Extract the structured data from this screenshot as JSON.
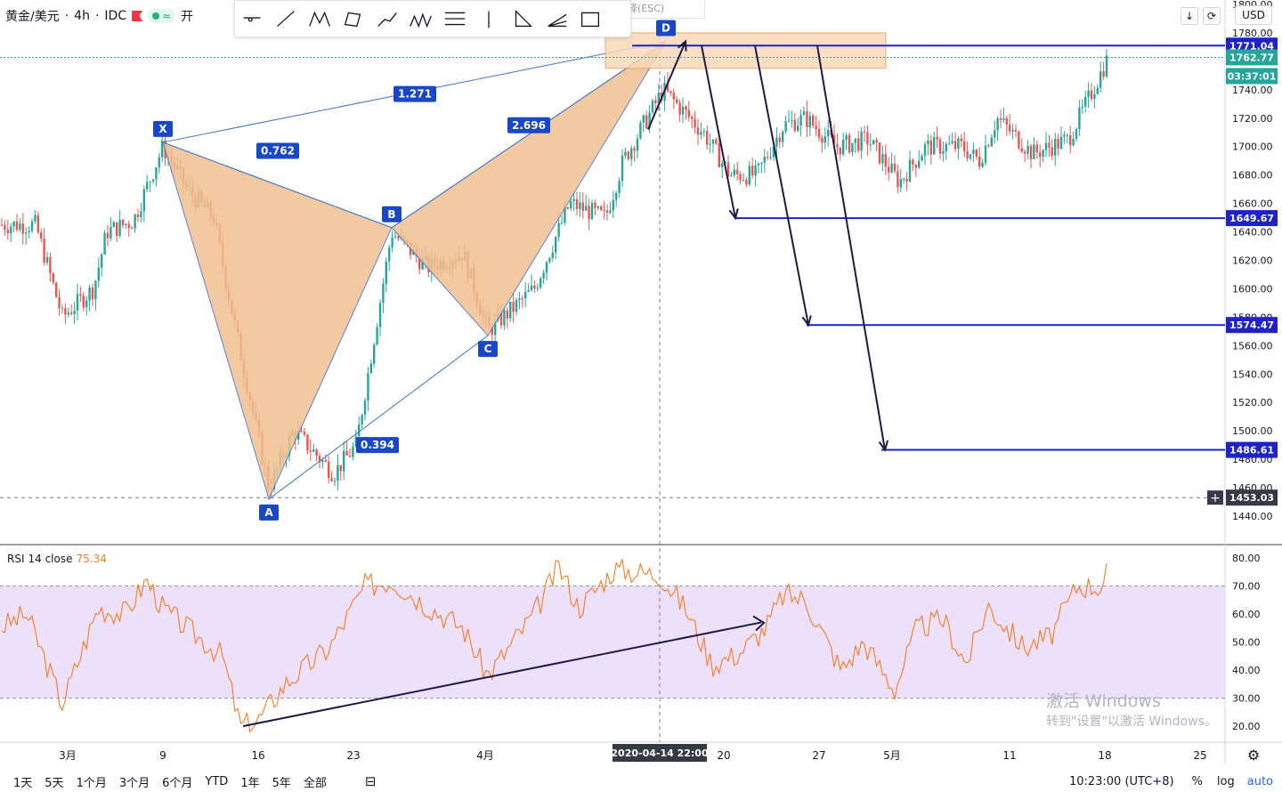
{
  "header": {
    "symbol": "黄金/美元",
    "interval": "4h",
    "source": "IDC",
    "partial_button": "开",
    "esc_hint": "择(ESC)"
  },
  "toolbar_tools": [
    "horizontal-line-icon",
    "trend-line-icon",
    "xabcd-pattern-icon",
    "rectangle-path-icon",
    "path-icon",
    "abcd-pattern-icon",
    "fib-levels-icon",
    "vertical-line-icon",
    "triangle-icon",
    "fan-icon",
    "frame-icon"
  ],
  "currency": "USD",
  "colors": {
    "up": "#26a69a",
    "down": "#ef5350",
    "pattern_fill": "#f0c090",
    "pattern_line": "#3d72d0",
    "target_line": "#1e22c8",
    "arrow": "#1d1a4a",
    "rsi": "#f57c1f",
    "rsi_band": "#e6d6fa"
  },
  "rsi_label": {
    "name": "RSI",
    "params": "14 close",
    "value": "75.34"
  },
  "range_buttons": [
    "1天",
    "5天",
    "1个月",
    "3个月",
    "6个月",
    "YTD",
    "1年",
    "5年",
    "全部"
  ],
  "time_label": "10:23:00 (UTC+8)",
  "scale_buttons": [
    "%",
    "log",
    "auto"
  ],
  "watermark": {
    "line1": "激活 Windows",
    "line2": "转到\"设置\"以激活 Windows。"
  },
  "chart_data": {
    "type": "candlestick",
    "price_axis": {
      "ticks": [
        "1800.00",
        "1780.00",
        "1760.00",
        "1740.00",
        "1720.00",
        "1700.00",
        "1680.00",
        "1660.00",
        "1640.00",
        "1620.00",
        "1600.00",
        "1580.00",
        "1560.00",
        "1540.00",
        "1520.00",
        "1500.00",
        "1480.00",
        "1460.00",
        "1440.00"
      ],
      "range": [
        1431,
        1804
      ]
    },
    "rsi_axis": {
      "ticks": [
        "80.00",
        "70.00",
        "60.00",
        "50.00",
        "40.00",
        "30.00",
        "20.00"
      ],
      "range": [
        16,
        83
      ],
      "band": [
        30,
        70
      ]
    },
    "time_axis": {
      "ticks": [
        "3月",
        "9",
        "16",
        "23",
        "4月",
        "20",
        "27",
        "5月",
        "11",
        "18",
        "25"
      ],
      "cursor_label": "2020-04-14  22:00"
    },
    "price_labels": [
      {
        "value": 1771.04,
        "text": "1771.04",
        "color": "#1e22c8"
      },
      {
        "value": 1762.77,
        "text": "1762.77",
        "color": "#26a69a"
      },
      {
        "value": 1749.6,
        "text": "03:37:01",
        "color": "#26a69a"
      },
      {
        "value": 1649.67,
        "text": "1649.67",
        "color": "#1e22c8"
      },
      {
        "value": 1574.47,
        "text": "1574.47",
        "color": "#1e22c8"
      },
      {
        "value": 1486.61,
        "text": "1486.61",
        "color": "#1e22c8"
      },
      {
        "value": 1453.03,
        "text": "1453.03",
        "color": "#363a45"
      }
    ],
    "harmonic_points": [
      {
        "label": "X",
        "price": 1703
      },
      {
        "label": "A",
        "price": 1452
      },
      {
        "label": "B",
        "price": 1643
      },
      {
        "label": "C",
        "price": 1567
      },
      {
        "label": "D",
        "price": 1774
      }
    ],
    "harmonic_ratios": [
      {
        "text": "0.762",
        "between": "XA-AB"
      },
      {
        "text": "0.394",
        "between": "AB-BC"
      },
      {
        "text": "1.271",
        "between": "XA-AD"
      },
      {
        "text": "2.696",
        "between": "BC-CD"
      }
    ],
    "targets": [
      1649.67,
      1574.47,
      1486.61
    ],
    "current_price": 1762.77,
    "rsi_current": 75.34
  }
}
